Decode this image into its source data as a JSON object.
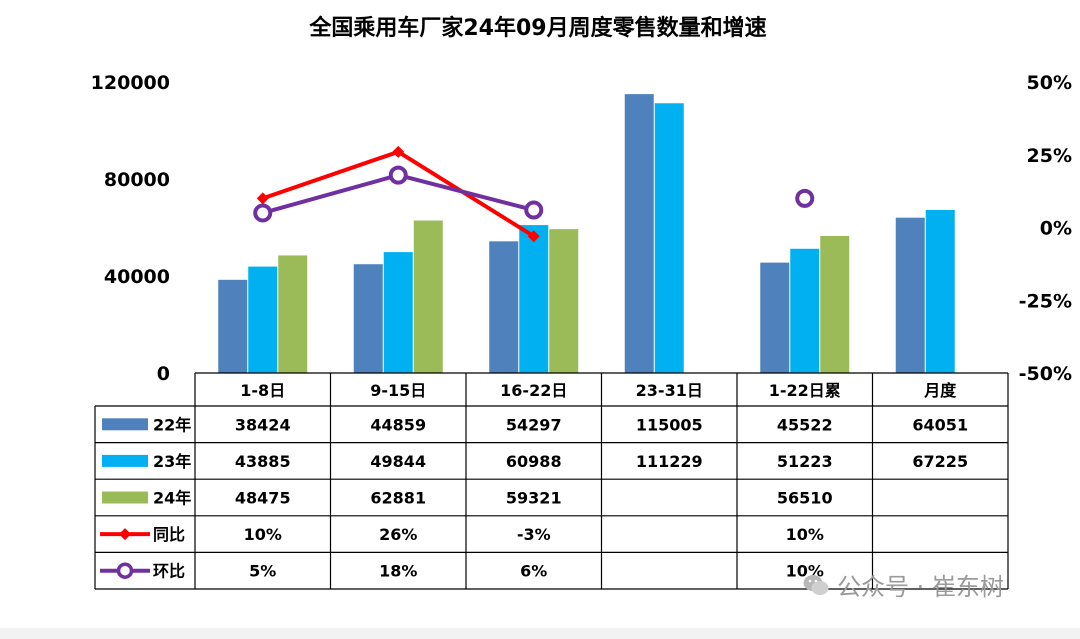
{
  "chart_data": {
    "type": "bar",
    "title": "全国乘用车厂家24年09月周度零售数量和增速",
    "categories": [
      "1-8日",
      "9-15日",
      "16-22日",
      "23-31日",
      "1-22日累",
      "月度"
    ],
    "ylim": [
      0,
      120000
    ],
    "y_ticks": [
      "120000",
      "80000",
      "40000",
      "0"
    ],
    "y2lim": [
      -50,
      50
    ],
    "y2_ticks": [
      "50%",
      "25%",
      "0%",
      "-25%",
      "-50%"
    ],
    "grid": false,
    "legend": "data table below chart",
    "series": [
      {
        "name": "22年",
        "kind": "bar",
        "color": "#4f81bd",
        "values": [
          38424,
          44859,
          54297,
          115005,
          45522,
          64051
        ],
        "labels": [
          "38424",
          "44859",
          "54297",
          "115005",
          "45522",
          "64051"
        ]
      },
      {
        "name": "23年",
        "kind": "bar",
        "color": "#00b0f0",
        "values": [
          43885,
          49844,
          60988,
          111229,
          51223,
          67225
        ],
        "labels": [
          "43885",
          "49844",
          "60988",
          "111229",
          "51223",
          "67225"
        ]
      },
      {
        "name": "24年",
        "kind": "bar",
        "color": "#9bbb59",
        "values": [
          48475,
          62881,
          59321,
          null,
          56510,
          null
        ],
        "labels": [
          "48475",
          "62881",
          "59321",
          "",
          "56510",
          ""
        ]
      },
      {
        "name": "同比",
        "kind": "line",
        "axis": "right",
        "color": "#ff0000",
        "marker": "diamond",
        "values": [
          10,
          26,
          -3,
          null,
          10,
          null
        ],
        "labels": [
          "10%",
          "26%",
          "-3%",
          "",
          "10%",
          ""
        ]
      },
      {
        "name": "环比",
        "kind": "line",
        "axis": "right",
        "color": "#7030a0",
        "marker": "circle",
        "values": [
          5,
          18,
          6,
          null,
          10,
          null
        ],
        "labels": [
          "5%",
          "18%",
          "6%",
          "",
          "10%",
          ""
        ]
      }
    ],
    "connected_until_index": 2
  },
  "watermark": {
    "text": "公众号 · 崔东树",
    "icon": "wechat-icon"
  }
}
